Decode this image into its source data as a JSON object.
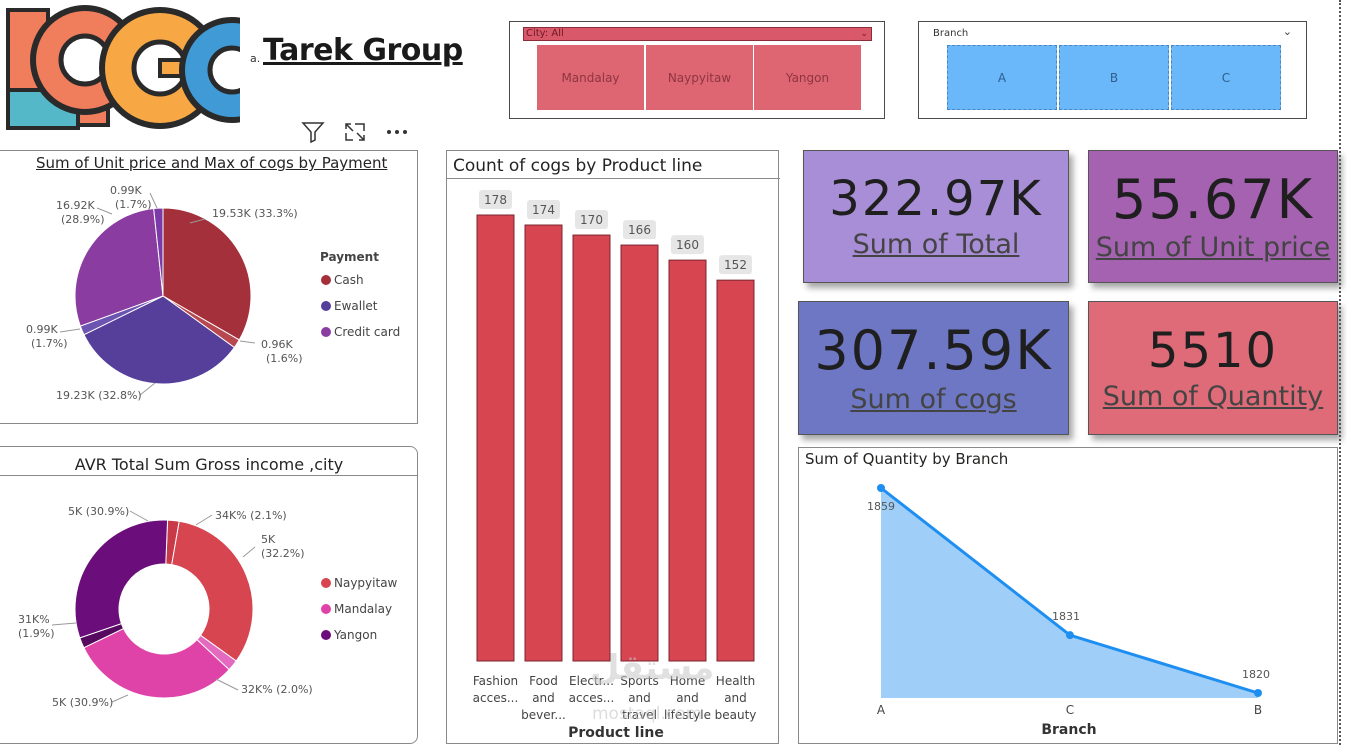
{
  "header": {
    "title_prefix": "a.",
    "title": "Tarek Group",
    "logo_text": "LCGC",
    "toolbar": {
      "filter_icon": "filter-icon",
      "focus_icon": "focus-mode-icon",
      "more_icon": "more-options-icon"
    }
  },
  "slicers": {
    "city": {
      "label": "City: All",
      "options": [
        "Mandalay",
        "Naypyitaw",
        "Yangon"
      ]
    },
    "branch": {
      "label": "Branch",
      "options": [
        "A",
        "B",
        "C"
      ]
    }
  },
  "kpis": [
    {
      "value": "322.97K",
      "label": "Sum of Total"
    },
    {
      "value": "55.67K",
      "label": "Sum of Unit price"
    },
    {
      "value": "307.59K",
      "label": "Sum of cogs"
    },
    {
      "value": "5510",
      "label": "Sum of Quantity"
    }
  ],
  "watermark": {
    "arabic": "مستقل",
    "latin": "mostaql.com"
  },
  "colors": {
    "accent_red": "#d64550",
    "accent_blue": "#1e8ff0",
    "cash": "#a3303a",
    "ewallet": "#563e9b",
    "credit_card": "#8a3ca0",
    "naypyitaw": "#d64550",
    "mandalay": "#e043a8",
    "yangon": "#6b0d7a"
  },
  "chart_data": [
    {
      "type": "pie",
      "title": "Sum of Unit price and Max of cogs by Payment",
      "legend_title": "Payment",
      "legend": [
        "Cash",
        "Ewallet",
        "Credit card"
      ],
      "slices": [
        {
          "name": "Cash",
          "value": 19.53,
          "label": "19.53K (33.3%)"
        },
        {
          "name": "Cash-cogs",
          "value": 0.96,
          "label": "0.96K",
          "pct": "(1.6%)"
        },
        {
          "name": "Ewallet",
          "value": 19.23,
          "label": "19.23K (32.8%)"
        },
        {
          "name": "Ewallet-cogs",
          "value": 0.99,
          "label": "0.99K",
          "pct": "(1.7%)"
        },
        {
          "name": "Credit card",
          "value": 16.92,
          "label": "16.92K",
          "pct": "(28.9%)"
        },
        {
          "name": "Credit card-cogs",
          "value": 0.99,
          "label": "0.99K",
          "pct": "(1.7%)"
        }
      ]
    },
    {
      "type": "donut",
      "title": "AVR Total Sum Gross income ,city",
      "legend": [
        "Naypyitaw",
        "Mandalay",
        "Yangon"
      ],
      "slices": [
        {
          "name": "Naypyitaw-small",
          "value": 2.1,
          "label": "34K% (2.1%)"
        },
        {
          "name": "Naypyitaw",
          "value": 32.2,
          "label": "5K",
          "pct": "(32.2%)"
        },
        {
          "name": "Mandalay-small",
          "value": 2.0,
          "label": "32K% (2.0%)"
        },
        {
          "name": "Mandalay",
          "value": 30.9,
          "label": "5K (30.9%)"
        },
        {
          "name": "Yangon-small",
          "value": 1.9,
          "label": "31K%",
          "pct": "(1.9%)"
        },
        {
          "name": "Yangon",
          "value": 30.9,
          "label": "5K (30.9%)"
        }
      ]
    },
    {
      "type": "bar",
      "title": "Count of cogs by Product line",
      "xlabel": "Product line",
      "categories": [
        [
          "Fashion",
          "acces..."
        ],
        [
          "Food",
          "and",
          "bever..."
        ],
        [
          "Electr...",
          "acces..."
        ],
        [
          "Sports",
          "and",
          "travel"
        ],
        [
          "Home",
          "and",
          "lifestyle"
        ],
        [
          "Health",
          "and",
          "beauty"
        ]
      ],
      "values": [
        178,
        174,
        170,
        166,
        160,
        152
      ],
      "ylim": [
        0,
        178
      ]
    },
    {
      "type": "area",
      "title": "Sum of Quantity by Branch",
      "xlabel": "Branch",
      "categories": [
        "A",
        "C",
        "B"
      ],
      "values": [
        1859,
        1831,
        1820
      ],
      "ylim": [
        1820,
        1859
      ]
    }
  ]
}
